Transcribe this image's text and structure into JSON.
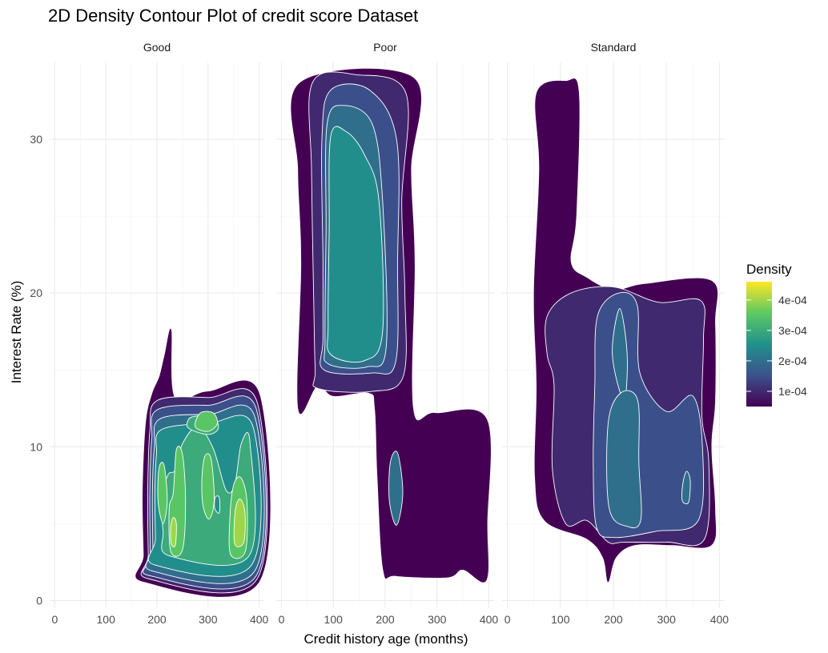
{
  "chart_data": {
    "type": "density_contour",
    "title": "2D Density Contour Plot of credit score Dataset",
    "xlabel": "Credit history age (months)",
    "ylabel": "Interest Rate (%)",
    "xlim": [
      -10,
      410
    ],
    "ylim": [
      -0.5,
      35
    ],
    "x_ticks": [
      0,
      100,
      200,
      300,
      400
    ],
    "y_ticks": [
      0,
      10,
      20,
      30
    ],
    "facets": [
      "Good",
      "Poor",
      "Standard"
    ],
    "legend": {
      "title": "Density",
      "labels": [
        "4e-04",
        "3e-04",
        "2e-04",
        "1e-04"
      ],
      "values": [
        0.0004,
        0.0003,
        0.0002,
        0.0001
      ],
      "range": [
        5e-05,
        0.00046
      ],
      "position": "right",
      "colors": [
        "#440154",
        "#3b528b",
        "#21918c",
        "#5ec962",
        "#fde725"
      ]
    },
    "grid": true,
    "contour_bands": {
      "Good": [
        {
          "level": 5e-05,
          "points": [
            [
              175,
              1.2
            ],
            [
              400,
              1.2
            ],
            [
              402,
              13.3
            ],
            [
              300,
              13.6
            ],
            [
              235,
              13.2
            ],
            [
              228,
              17.6
            ],
            [
              215,
              16
            ],
            [
              205,
              14.6
            ],
            [
              190,
              13.4
            ],
            [
              178,
              11.5
            ],
            [
              172,
              7
            ],
            [
              174,
              3
            ]
          ]
        },
        {
          "level": 0.0001,
          "points": [
            [
              185,
              1.4
            ],
            [
              396,
              1.4
            ],
            [
              397,
              12.8
            ],
            [
              300,
              13.2
            ],
            [
              200,
              13
            ],
            [
              186,
              11
            ],
            [
              182,
              7
            ],
            [
              183,
              3
            ]
          ]
        },
        {
          "level": 0.00015,
          "points": [
            [
              188,
              1.6
            ],
            [
              394,
              1.6
            ],
            [
              395,
              12.4
            ],
            [
              300,
              12.7
            ],
            [
              200,
              12.4
            ],
            [
              190,
              10.5
            ],
            [
              186,
              7
            ],
            [
              187,
              3
            ]
          ]
        },
        {
          "level": 0.0002,
          "points": [
            [
              193,
              1.9
            ],
            [
              391,
              1.9
            ],
            [
              392,
              11.9
            ],
            [
              300,
              12.1
            ],
            [
              205,
              11.8
            ],
            [
              195,
              10
            ],
            [
              191,
              7
            ],
            [
              192,
              3.5
            ]
          ]
        },
        {
          "level": 0.00025,
          "points": [
            [
              197,
              2.3
            ],
            [
              385,
              2.3
            ],
            [
              388,
              11.3
            ],
            [
              300,
              11.5
            ],
            [
              208,
              11.1
            ],
            [
              199,
              9.5
            ],
            [
              196,
              7
            ],
            [
              197,
              4
            ]
          ]
        },
        {
          "level": 0.0003,
          "points": [
            [
              225,
              2.9
            ],
            [
              380,
              2.9
            ],
            [
              382,
              10.3
            ],
            [
              365,
              10.2
            ],
            [
              352,
              7.5
            ],
            [
              335,
              7.2
            ],
            [
              310,
              9.9
            ],
            [
              280,
              11.3
            ],
            [
              250,
              10.2
            ],
            [
              236,
              8.5
            ],
            [
              222,
              8.2
            ],
            [
              210,
              6.8
            ],
            [
              212,
              4.5
            ]
          ]
        },
        {
          "level": 0.0003,
          "points": [
            [
              262,
              11.2
            ],
            [
              300,
              10.8
            ],
            [
              320,
              11.2
            ],
            [
              310,
              12
            ],
            [
              278,
              12
            ],
            [
              262,
              11.8
            ]
          ]
        },
        {
          "level": 0.00035,
          "points": [
            [
              227,
              3.2
            ],
            [
              250,
              3.3
            ],
            [
              256,
              6.5
            ],
            [
              250,
              9.5
            ],
            [
              238,
              9.8
            ],
            [
              232,
              7
            ],
            [
              224,
              6
            ]
          ]
        },
        {
          "level": 0.00035,
          "points": [
            [
              290,
              6.2
            ],
            [
              302,
              5.3
            ],
            [
              312,
              6.5
            ],
            [
              306,
              9.2
            ],
            [
              294,
              9.4
            ],
            [
              288,
              8
            ]
          ]
        },
        {
          "level": 0.00035,
          "points": [
            [
              344,
              3
            ],
            [
              373,
              3.2
            ],
            [
              376,
              6.5
            ],
            [
              364,
              8
            ],
            [
              350,
              7.5
            ],
            [
              343,
              5.5
            ]
          ]
        },
        {
          "level": 0.00035,
          "points": [
            [
              202,
              6.5
            ],
            [
              212,
              5
            ],
            [
              220,
              6.5
            ],
            [
              214,
              8.8
            ],
            [
              204,
              8.6
            ]
          ]
        },
        {
          "level": 0.00035,
          "points": [
            [
              275,
              11.3
            ],
            [
              300,
              11
            ],
            [
              318,
              11.5
            ],
            [
              310,
              12.2
            ],
            [
              285,
              12.2
            ]
          ]
        },
        {
          "level": 0.0004,
          "points": [
            [
              352,
              3.7
            ],
            [
              370,
              3.8
            ],
            [
              372,
              5.8
            ],
            [
              362,
              6.6
            ],
            [
              353,
              5.8
            ]
          ]
        },
        {
          "level": 0.0004,
          "points": [
            [
              228,
              3.7
            ],
            [
              236,
              3.6
            ],
            [
              238,
              5
            ],
            [
              232,
              5.4
            ],
            [
              227,
              4.8
            ]
          ]
        },
        {
          "level": 0.00025,
          "points": [
            [
              313,
              6
            ],
            [
              322,
              5.7
            ],
            [
              322,
              6.7
            ],
            [
              314,
              6.7
            ]
          ]
        }
      ],
      "Poor": [
        {
          "level": 5e-05,
          "points": [
            [
              32,
              12.5
            ],
            [
              38,
              22
            ],
            [
              32,
              28
            ],
            [
              36,
              33.7
            ],
            [
              255,
              34
            ],
            [
              250,
              28
            ],
            [
              257,
              22
            ],
            [
              254,
              12.5
            ],
            [
              296,
              12.2
            ],
            [
              396,
              11.8
            ],
            [
              397,
              5
            ],
            [
              395,
              1.3
            ],
            [
              350,
              2
            ],
            [
              320,
              1.5
            ],
            [
              220,
              1.6
            ],
            [
              196,
              2
            ],
            [
              185,
              8
            ],
            [
              180,
              12.5
            ],
            [
              168,
              13.5
            ],
            [
              100,
              13.3
            ],
            [
              70,
              14
            ]
          ]
        },
        {
          "level": 0.0001,
          "points": [
            [
              70,
              13.8
            ],
            [
              175,
              13.6
            ],
            [
              235,
              14.6
            ],
            [
              238,
              20
            ],
            [
              232,
              26
            ],
            [
              240,
              33
            ],
            [
              145,
              34.2
            ],
            [
              60,
              33.7
            ],
            [
              58,
              28
            ],
            [
              62,
              20
            ],
            [
              65,
              15
            ]
          ]
        },
        {
          "level": 0.00015,
          "points": [
            [
              82,
              15
            ],
            [
              175,
              14.8
            ],
            [
              220,
              15.5
            ],
            [
              224,
              22
            ],
            [
              222,
              30
            ],
            [
              170,
              33.2
            ],
            [
              95,
              33.2
            ],
            [
              78,
              30
            ],
            [
              80,
              22
            ],
            [
              80,
              17
            ]
          ]
        },
        {
          "level": 0.0002,
          "points": [
            [
              90,
              15.4
            ],
            [
              165,
              15.2
            ],
            [
              202,
              16.5
            ],
            [
              195,
              26
            ],
            [
              175,
              31
            ],
            [
              120,
              32.2
            ],
            [
              88,
              31
            ],
            [
              86,
              24
            ],
            [
              84,
              17
            ]
          ]
        },
        {
          "level": 0.00025,
          "points": [
            [
              95,
              16
            ],
            [
              160,
              15.6
            ],
            [
              195,
              17.5
            ],
            [
              188,
              26
            ],
            [
              160,
              29
            ],
            [
              125,
              30.5
            ],
            [
              95,
              30.2
            ],
            [
              92,
              24
            ],
            [
              90,
              18
            ]
          ]
        },
        {
          "level": 0.0002,
          "points": [
            [
              208,
              6.5
            ],
            [
              222,
              4.9
            ],
            [
              234,
              7
            ],
            [
              224,
              9.6
            ],
            [
              210,
              9
            ]
          ]
        }
      ],
      "Standard": [
        {
          "level": 5e-05,
          "points": [
            [
              55,
              33
            ],
            [
              110,
              33.8
            ],
            [
              135,
              33
            ],
            [
              130,
              25
            ],
            [
              120,
              22
            ],
            [
              150,
              21
            ],
            [
              200,
              20.2
            ],
            [
              260,
              20.6
            ],
            [
              385,
              20.8
            ],
            [
              392,
              18
            ],
            [
              392,
              13
            ],
            [
              385,
              10
            ],
            [
              392,
              6
            ],
            [
              385,
              3.6
            ],
            [
              310,
              3.6
            ],
            [
              240,
              3.6
            ],
            [
              205,
              2.8
            ],
            [
              190,
              1.2
            ],
            [
              180,
              2.8
            ],
            [
              150,
              4
            ],
            [
              70,
              5.2
            ],
            [
              52,
              8
            ],
            [
              55,
              14
            ],
            [
              50,
              20
            ],
            [
              60,
              28
            ]
          ]
        },
        {
          "level": 0.0001,
          "points": [
            [
              75,
              18.5
            ],
            [
              120,
              20
            ],
            [
              200,
              20.4
            ],
            [
              285,
              19.4
            ],
            [
              365,
              19.5
            ],
            [
              370,
              17
            ],
            [
              367,
              12
            ],
            [
              380,
              9
            ],
            [
              372,
              4
            ],
            [
              300,
              3.8
            ],
            [
              220,
              3.8
            ],
            [
              190,
              3.8
            ],
            [
              150,
              5.2
            ],
            [
              110,
              5
            ],
            [
              85,
              8.5
            ],
            [
              88,
              14
            ],
            [
              75,
              16
            ]
          ]
        },
        {
          "level": 0.00015,
          "points": [
            [
              170,
              18.5
            ],
            [
              210,
              20
            ],
            [
              245,
              19.2
            ],
            [
              250,
              14.8
            ],
            [
              300,
              12.3
            ],
            [
              350,
              13.3
            ],
            [
              368,
              10
            ],
            [
              360,
              5.2
            ],
            [
              280,
              4.5
            ],
            [
              200,
              4.1
            ],
            [
              168,
              4.8
            ],
            [
              162,
              9
            ],
            [
              165,
              14
            ]
          ]
        },
        {
          "level": 0.0002,
          "points": [
            [
              198,
              16
            ],
            [
              212,
              19
            ],
            [
              226,
              16
            ],
            [
              220,
              13
            ]
          ]
        },
        {
          "level": 0.0002,
          "points": [
            [
              192,
              6
            ],
            [
              228,
              4.8
            ],
            [
              252,
              5.3
            ],
            [
              248,
              9
            ],
            [
              246,
              13
            ],
            [
              214,
              13.5
            ],
            [
              190,
              11.5
            ]
          ]
        },
        {
          "level": 0.0002,
          "points": [
            [
              330,
              6.5
            ],
            [
              342,
              6.4
            ],
            [
              345,
              7.8
            ],
            [
              338,
              8.4
            ],
            [
              331,
              7.6
            ]
          ]
        }
      ]
    }
  }
}
